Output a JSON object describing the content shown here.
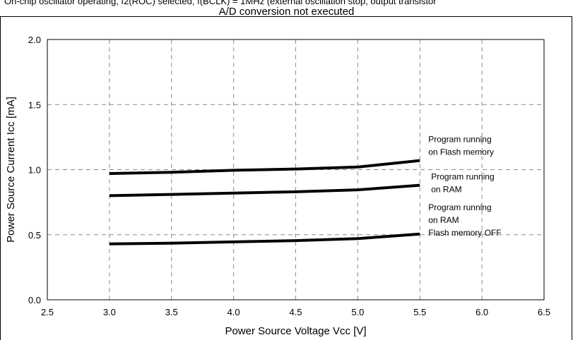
{
  "header": {
    "line1": "On-chip oscillator operating, f2(ROC) selected, f(BCLK) = 1MHz (external oscillation stop, output transistor",
    "line2": "A/D conversion not executed"
  },
  "chart_data": {
    "type": "line",
    "xlabel": "Power Source Voltage Vcc [V]",
    "ylabel": "Power Source Current Icc [mA]",
    "xlim": [
      2.5,
      6.5
    ],
    "ylim": [
      0.0,
      2.0
    ],
    "x_ticks": [
      "2.5",
      "3.0",
      "3.5",
      "4.0",
      "4.5",
      "5.0",
      "5.5",
      "6.0",
      "6.5"
    ],
    "y_ticks": [
      "0.0",
      "0.5",
      "1.0",
      "1.5",
      "2.0"
    ],
    "grid": "dashed",
    "series": [
      {
        "name": "Program running on Flash memory",
        "label_lines": [
          "Program running",
          "on Flash memory"
        ],
        "x": [
          3.0,
          3.5,
          4.0,
          4.5,
          5.0,
          5.5
        ],
        "y": [
          0.97,
          0.98,
          0.995,
          1.005,
          1.02,
          1.07
        ]
      },
      {
        "name": "Program running on RAM",
        "label_lines": [
          "Program running",
          "on RAM"
        ],
        "x": [
          3.0,
          3.5,
          4.0,
          4.5,
          5.0,
          5.5
        ],
        "y": [
          0.8,
          0.81,
          0.82,
          0.83,
          0.845,
          0.88
        ]
      },
      {
        "name": "Program running on RAM Flash memory OFF",
        "label_lines": [
          "Program running",
          "on RAM",
          "Flash memory OFF"
        ],
        "x": [
          3.0,
          3.5,
          4.0,
          4.5,
          5.0,
          5.5
        ],
        "y": [
          0.43,
          0.435,
          0.445,
          0.455,
          0.47,
          0.505
        ]
      }
    ]
  }
}
